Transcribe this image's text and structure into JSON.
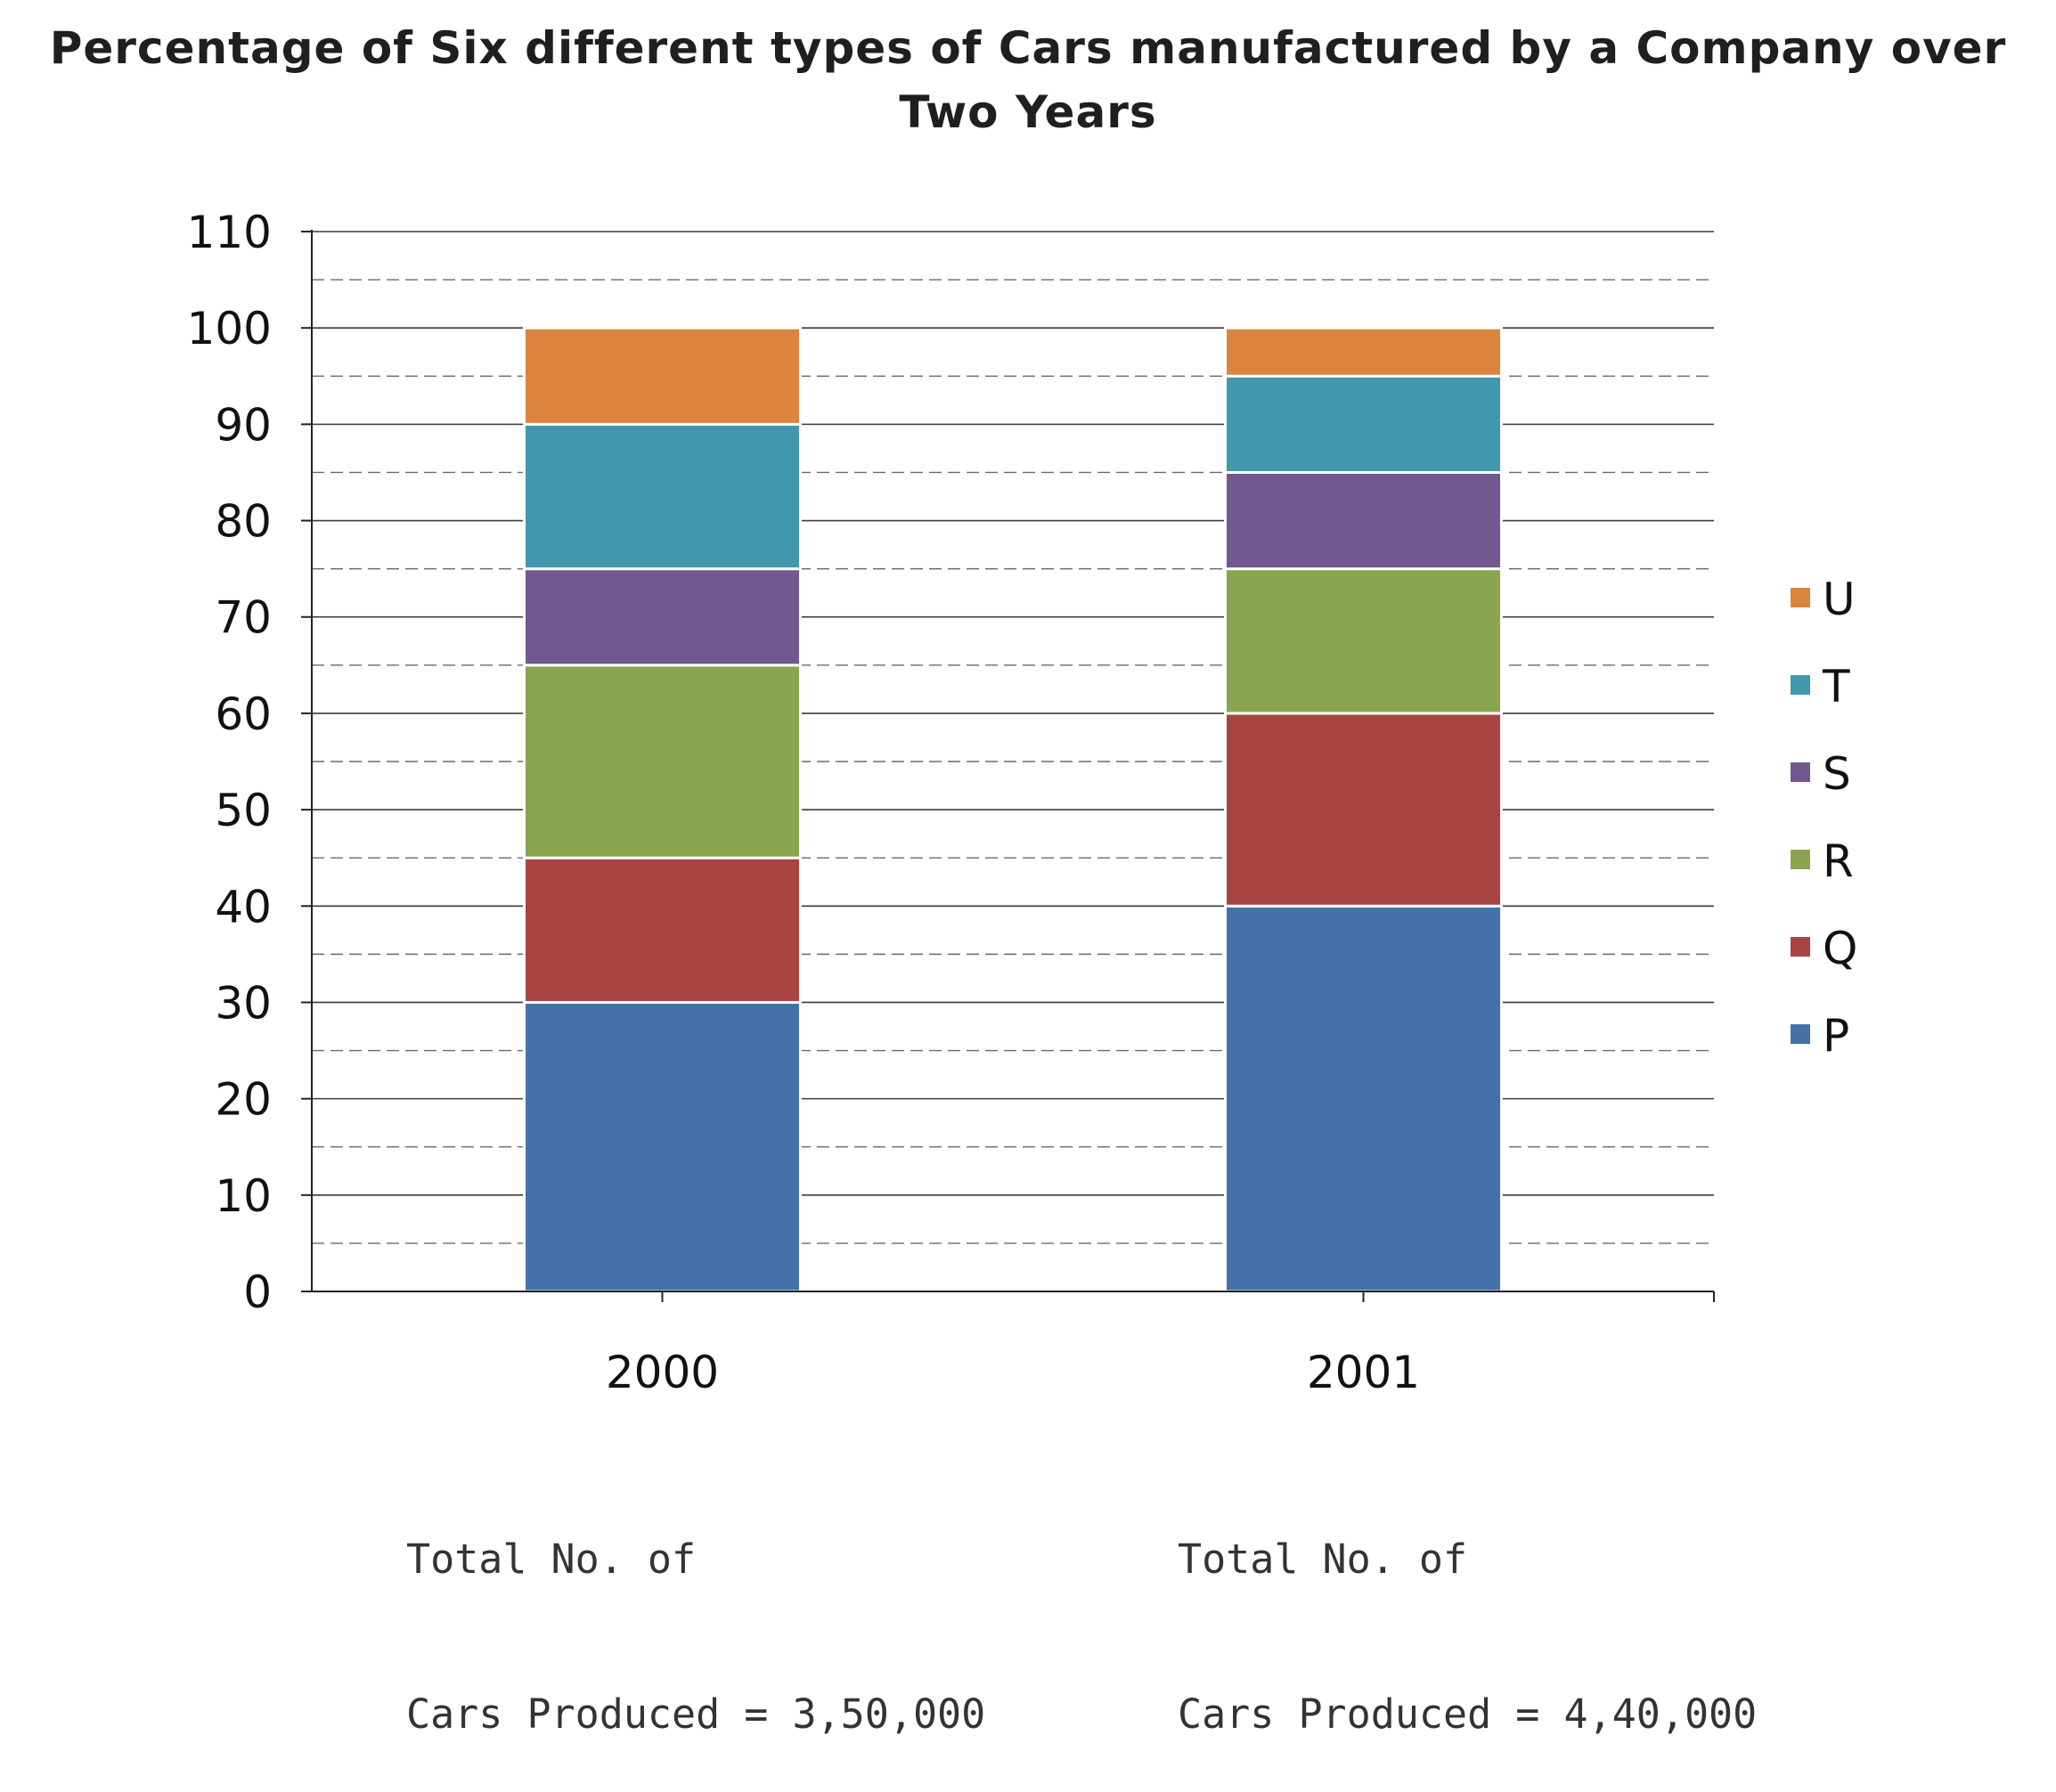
{
  "chart_data": {
    "type": "bar",
    "stacked": true,
    "title": "Percentage of Six different types of Cars manufactured by a Company over Two Years",
    "xlabel": "",
    "ylabel": "",
    "categories": [
      "2000",
      "2001"
    ],
    "ylim": [
      0,
      110
    ],
    "yticks": [
      0,
      10,
      20,
      30,
      40,
      50,
      60,
      70,
      80,
      90,
      100,
      110
    ],
    "grid": true,
    "legend_position": "right",
    "series": [
      {
        "name": "P",
        "color": "#4472a8",
        "values": [
          30,
          40
        ]
      },
      {
        "name": "Q",
        "color": "#a84442",
        "values": [
          15,
          20
        ]
      },
      {
        "name": "R",
        "color": "#89a54e",
        "values": [
          20,
          15
        ]
      },
      {
        "name": "S",
        "color": "#71588f",
        "values": [
          10,
          10
        ]
      },
      {
        "name": "T",
        "color": "#4198af",
        "values": [
          15,
          10
        ]
      },
      {
        "name": "U",
        "color": "#db843d",
        "values": [
          10,
          5
        ]
      }
    ]
  },
  "notes": [
    {
      "line1": "Total No. of",
      "line2": "Cars Produced = 3,50,000"
    },
    {
      "line1": "Total No. of",
      "line2": "Cars Produced = 4,40,000"
    }
  ]
}
